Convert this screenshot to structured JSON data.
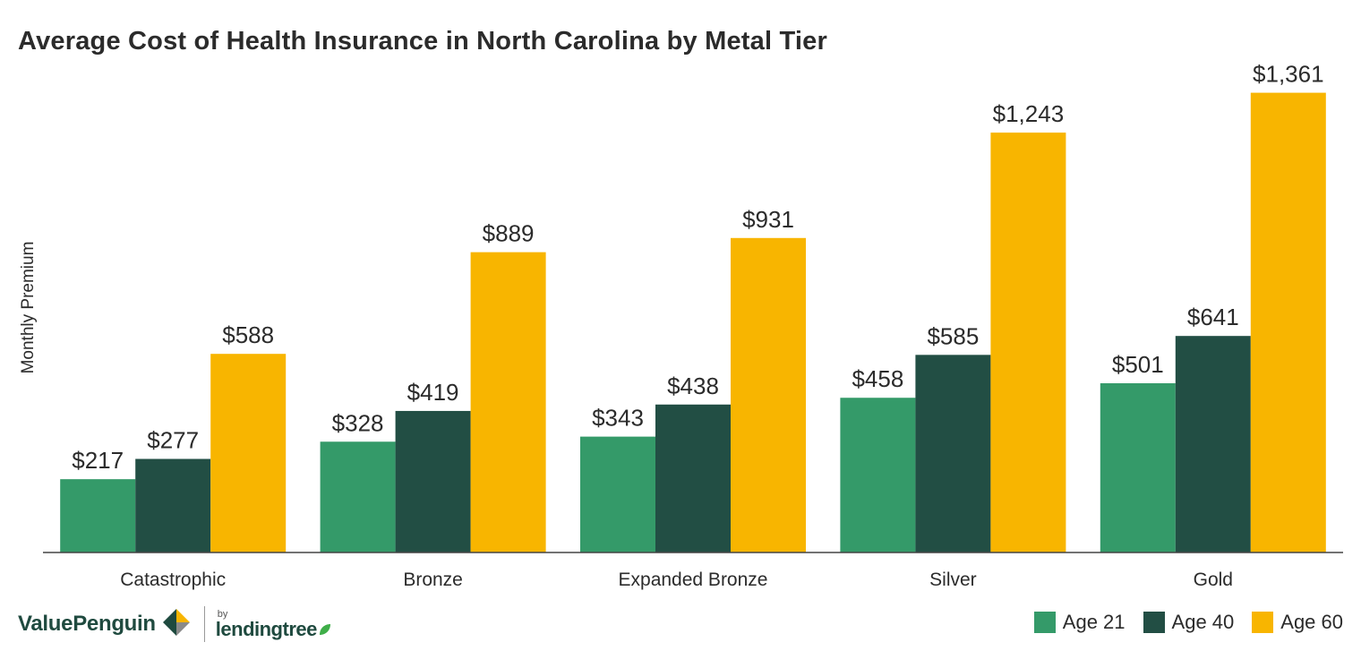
{
  "chart_data": {
    "type": "bar",
    "title": "Average Cost of Health Insurance in North Carolina by Metal Tier",
    "ylabel": "Monthly Premium",
    "xlabel": "",
    "ylim": [
      0,
      1450
    ],
    "grid": false,
    "legend_position": "bottom-right",
    "categories": [
      "Catastrophic",
      "Bronze",
      "Expanded Bronze",
      "Silver",
      "Gold"
    ],
    "series": [
      {
        "name": "Age 21",
        "color": "#349a69",
        "values": [
          217,
          328,
          343,
          458,
          501
        ],
        "labels": [
          "$217",
          "$328",
          "$343",
          "$458",
          "$501"
        ]
      },
      {
        "name": "Age 40",
        "color": "#224e44",
        "values": [
          277,
          419,
          438,
          585,
          641
        ],
        "labels": [
          "$277",
          "$419",
          "$438",
          "$585",
          "$641"
        ]
      },
      {
        "name": "Age 60",
        "color": "#f8b500",
        "values": [
          588,
          889,
          931,
          1243,
          1361
        ],
        "labels": [
          "$588",
          "$889",
          "$931",
          "$1,243",
          "$1,361"
        ]
      }
    ]
  },
  "branding": {
    "brand_name": "ValuePenguin",
    "by_label": "by",
    "partner_name": "lendingtree",
    "logo_icon": "valuepenguin-logo-icon",
    "leaf_icon": "lendingtree-leaf-icon"
  },
  "colors": {
    "title": "#2b2b2b",
    "axis": "#444444",
    "brand": "#1f4a3f"
  }
}
